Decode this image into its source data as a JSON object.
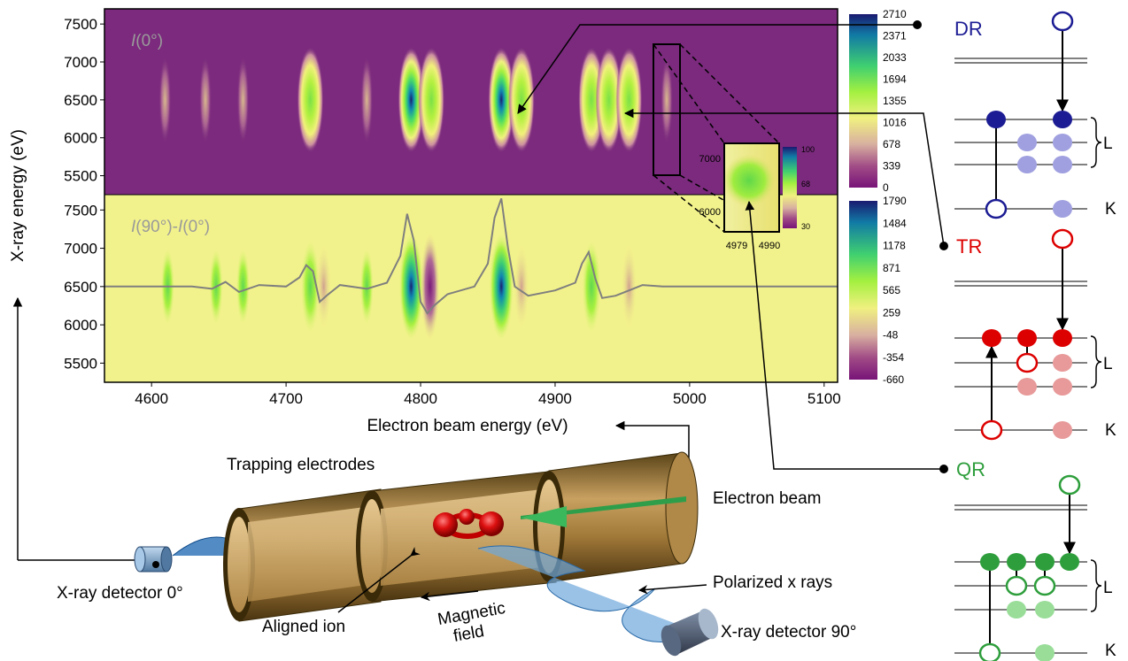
{
  "chart_data": [
    {
      "type": "heatmap",
      "title": "I(0°)",
      "title_parts": {
        "italic": "I",
        "rest": "(0°)"
      },
      "xlabel": "Electron beam energy (eV)",
      "ylabel": "X-ray energy (eV)",
      "xlim": [
        4565,
        5110
      ],
      "ylim": [
        5250,
        7700
      ],
      "x_ticks": [
        "4600",
        "4700",
        "4800",
        "4900",
        "5000",
        "5100"
      ],
      "y_ticks": [
        "7500",
        "7000",
        "6500",
        "6000",
        "5500"
      ],
      "colorbar_ticks": [
        "2710",
        "2371",
        "2033",
        "1694",
        "1355",
        "1016",
        "678",
        "339",
        "0"
      ],
      "colorbar_colors": [
        "#1a1f7a",
        "#0f7fa0",
        "#40d060",
        "#9ef03c",
        "#f2f27a",
        "#d9a8a0",
        "#a0407e",
        "#7a1a7a"
      ],
      "background_color": "#7b2a7d",
      "peaks": [
        {
          "x": 4610,
          "y": 6500,
          "value": 150
        },
        {
          "x": 4640,
          "y": 6500,
          "value": 120
        },
        {
          "x": 4668,
          "y": 6500,
          "value": 200
        },
        {
          "x": 4718,
          "y": 6500,
          "value": 1400
        },
        {
          "x": 4760,
          "y": 6500,
          "value": 180
        },
        {
          "x": 4793,
          "y": 6500,
          "value": 2710
        },
        {
          "x": 4808,
          "y": 6500,
          "value": 1500
        },
        {
          "x": 4860,
          "y": 6500,
          "value": 2300
        },
        {
          "x": 4875,
          "y": 6500,
          "value": 1300
        },
        {
          "x": 4927,
          "y": 6500,
          "value": 1000
        },
        {
          "x": 4940,
          "y": 6500,
          "value": 800
        },
        {
          "x": 4955,
          "y": 6500,
          "value": 700
        },
        {
          "x": 4983,
          "y": 6500,
          "value": 350
        }
      ]
    },
    {
      "type": "heatmap",
      "title": "I(90°)-I(0°)",
      "title_parts": {
        "italic1": "I",
        "mid": "(90°)-",
        "italic2": "I",
        "rest": "(0°)"
      },
      "xlim": [
        4565,
        5110
      ],
      "ylim": [
        5250,
        7700
      ],
      "y_ticks": [
        "7500",
        "7000",
        "6500",
        "6000",
        "5500"
      ],
      "colorbar_ticks": [
        "1790",
        "1484",
        "1178",
        "871",
        "565",
        "259",
        "-48",
        "-354",
        "-660"
      ],
      "background_color": "#f2f28c",
      "peaks": [
        {
          "x": 4612,
          "y": 6500,
          "value": 200
        },
        {
          "x": 4648,
          "y": 6500,
          "value": 250
        },
        {
          "x": 4668,
          "y": 6500,
          "value": 350
        },
        {
          "x": 4718,
          "y": 6500,
          "value": 700
        },
        {
          "x": 4728,
          "y": 6500,
          "value": -200
        },
        {
          "x": 4760,
          "y": 6500,
          "value": 250
        },
        {
          "x": 4793,
          "y": 6500,
          "value": 1790
        },
        {
          "x": 4807,
          "y": 6500,
          "value": -660
        },
        {
          "x": 4860,
          "y": 6500,
          "value": 1790
        },
        {
          "x": 4875,
          "y": 6500,
          "value": -250
        },
        {
          "x": 4927,
          "y": 6500,
          "value": 700
        },
        {
          "x": 4955,
          "y": 6500,
          "value": -200
        }
      ],
      "overlay_line": {
        "color": "#7f7f7f",
        "x": [
          4565,
          4600,
          4630,
          4645,
          4655,
          4665,
          4680,
          4700,
          4710,
          4715,
          4720,
          4725,
          4730,
          4740,
          4760,
          4775,
          4785,
          4790,
          4795,
          4800,
          4805,
          4810,
          4820,
          4840,
          4850,
          4855,
          4860,
          4865,
          4870,
          4880,
          4900,
          4915,
          4920,
          4925,
          4930,
          4935,
          4945,
          4955,
          4965,
          4980,
          5000,
          5110
        ],
        "y": [
          6500,
          6500,
          6500,
          6470,
          6560,
          6430,
          6520,
          6500,
          6620,
          6780,
          6700,
          6300,
          6380,
          6520,
          6470,
          6550,
          6900,
          7450,
          7100,
          6300,
          6150,
          6250,
          6400,
          6500,
          6800,
          7400,
          7650,
          7000,
          6500,
          6380,
          6450,
          6550,
          6800,
          6950,
          6600,
          6350,
          6380,
          6450,
          6520,
          6500,
          6500,
          6500
        ]
      }
    },
    {
      "type": "heatmap",
      "title": "inset",
      "x_ticks": [
        "4979",
        "4990"
      ],
      "y_ticks": [
        "7000",
        "6000"
      ],
      "colorbar_ticks": [
        "100",
        "68",
        "30"
      ]
    }
  ],
  "diagram": {
    "dr": {
      "label": "DR",
      "color": "#1c1c94",
      "light": "#a0a0e0"
    },
    "tr": {
      "label": "TR",
      "color": "#dd0000",
      "light": "#e89999"
    },
    "qr": {
      "label": "QR",
      "color": "#2e9e3c",
      "light": "#99dd99"
    },
    "shell_l": "L",
    "shell_k": "K",
    "labels": {
      "trapping_electrodes": "Trapping electrodes",
      "electron_beam": "Electron beam",
      "polarized_x_rays": "Polarized x rays",
      "detector_0": "X-ray detector 0°",
      "detector_90": "X-ray detector 90°",
      "aligned_ion": "Aligned ion",
      "magnetic_field_1": "Magnetic",
      "magnetic_field_2": "field"
    }
  }
}
